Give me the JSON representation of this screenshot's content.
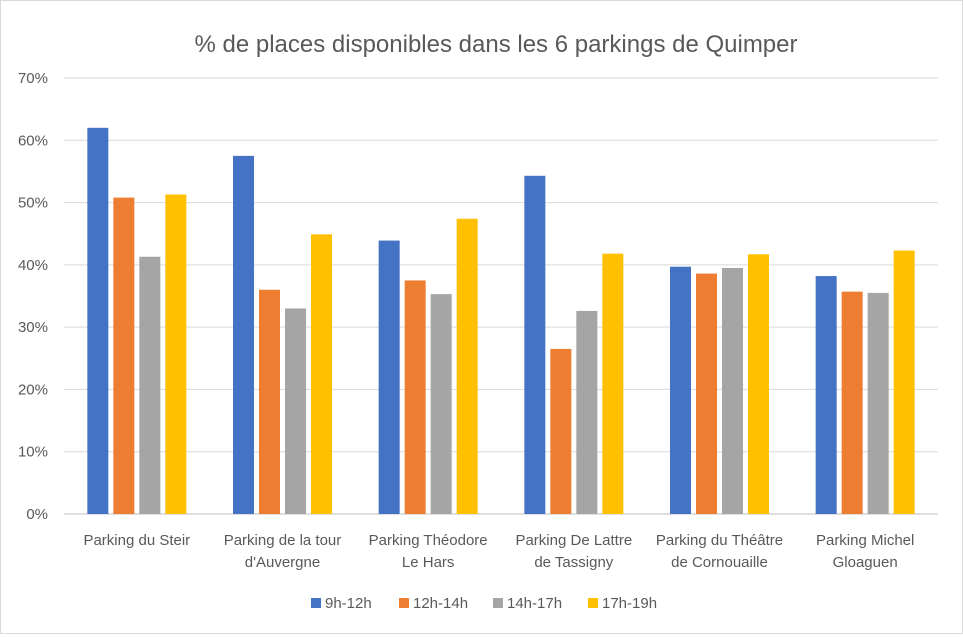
{
  "chart_data": {
    "type": "bar",
    "title": "% de places disponibles dans les 6 parkings de Quimper",
    "xlabel": "",
    "ylabel": "",
    "ylim": [
      0,
      70
    ],
    "yticks": [
      "0%",
      "10%",
      "20%",
      "30%",
      "40%",
      "50%",
      "60%",
      "70%"
    ],
    "grid": true,
    "legend_position": "bottom",
    "categories": [
      [
        "Parking du Steir"
      ],
      [
        "Parking de la tour",
        "d'Auvergne"
      ],
      [
        "Parking Théodore",
        "Le Hars"
      ],
      [
        "Parking De Lattre",
        "de Tassigny"
      ],
      [
        "Parking du Théâtre",
        "de Cornouaille"
      ],
      [
        "Parking Michel",
        "Gloaguen"
      ]
    ],
    "series": [
      {
        "name": "9h-12h",
        "color": "#4472c4",
        "values": [
          62.0,
          57.5,
          43.9,
          54.3,
          39.7,
          38.2
        ]
      },
      {
        "name": "12h-14h",
        "color": "#ed7d31",
        "values": [
          50.8,
          36.0,
          37.5,
          26.5,
          38.6,
          35.7
        ]
      },
      {
        "name": "14h-17h",
        "color": "#a5a5a5",
        "values": [
          41.3,
          33.0,
          35.3,
          32.6,
          39.5,
          35.5
        ]
      },
      {
        "name": "17h-19h",
        "color": "#ffc000",
        "values": [
          51.3,
          44.9,
          47.4,
          41.8,
          41.7,
          42.3
        ]
      }
    ]
  }
}
